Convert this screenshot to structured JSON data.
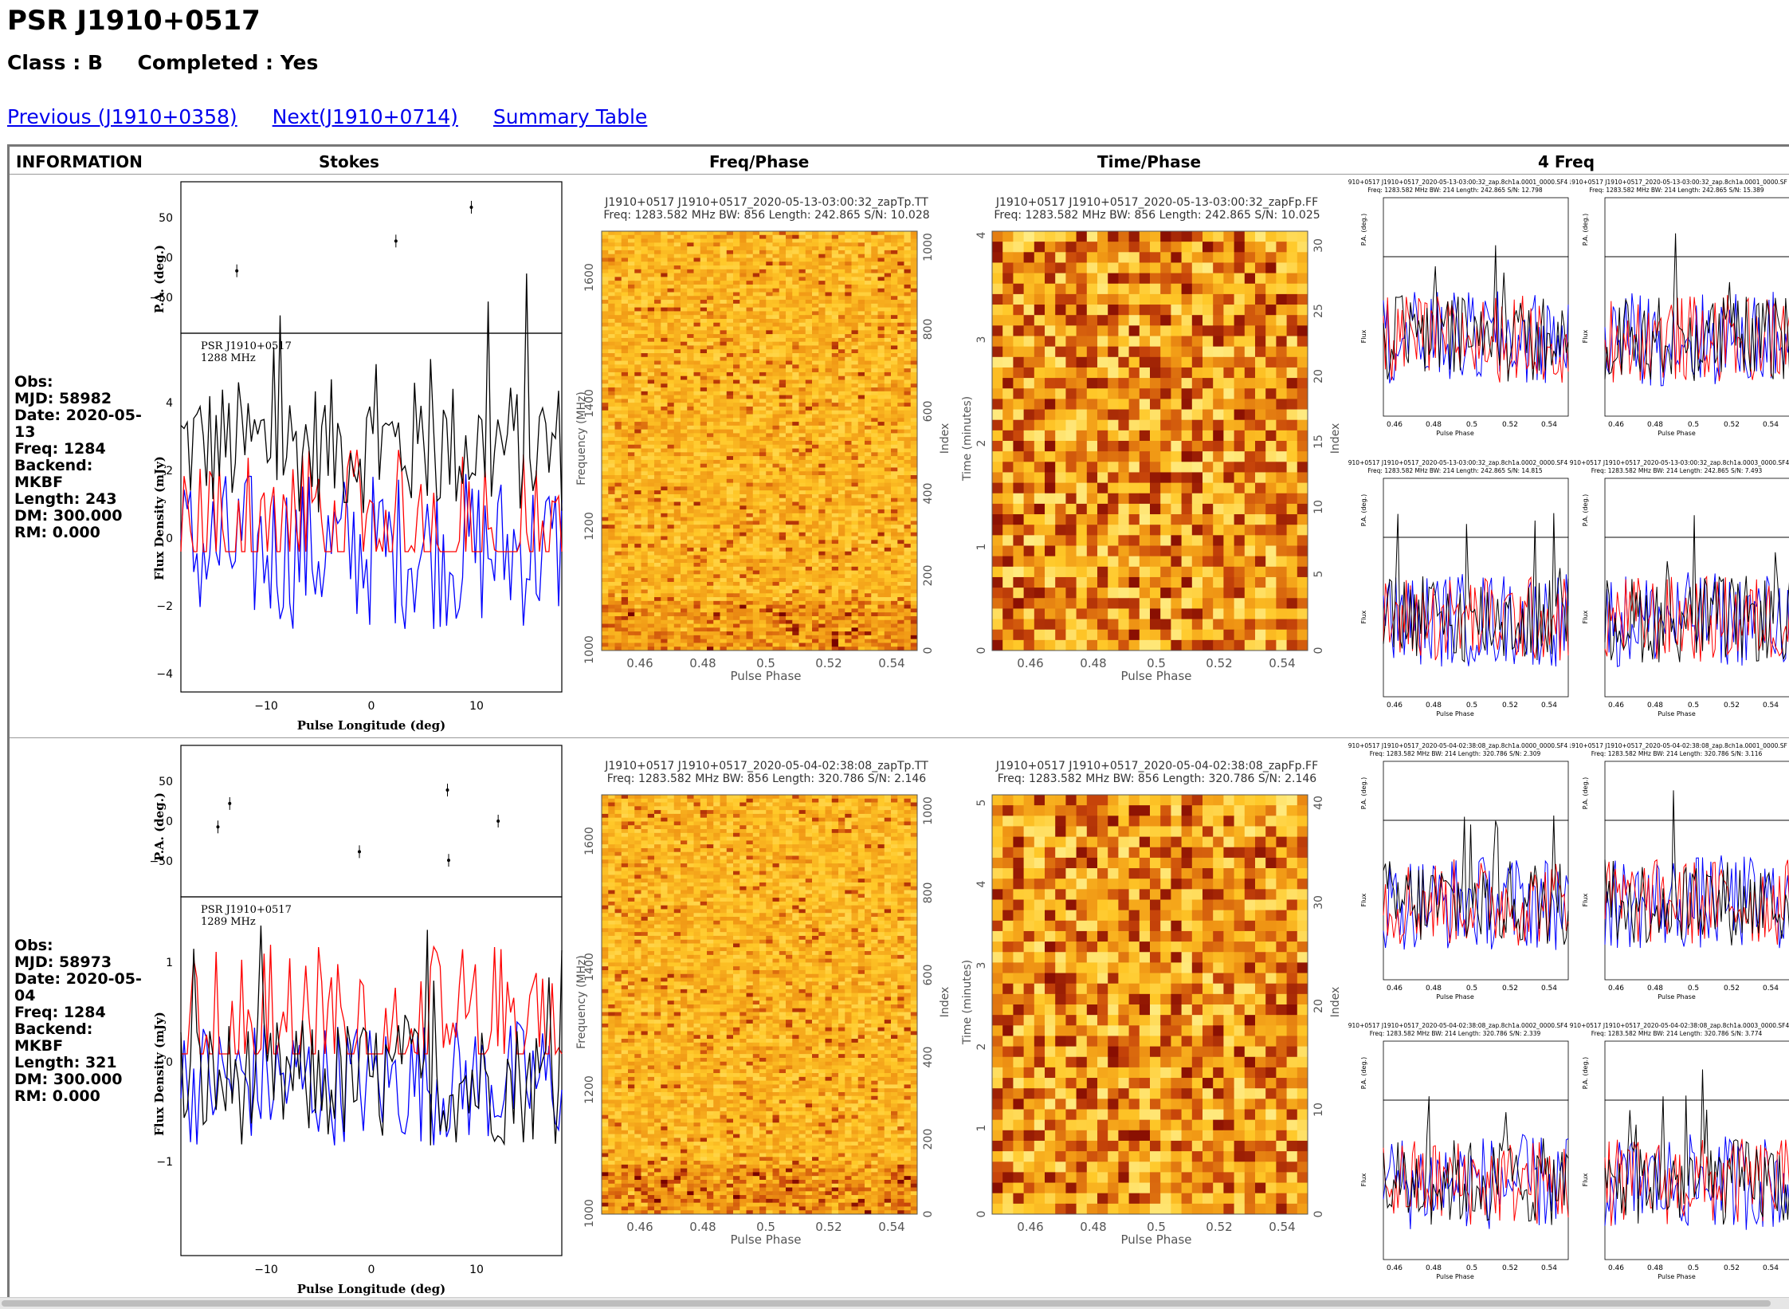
{
  "page": {
    "title": "PSR J1910+0517",
    "class_label": "Class : B",
    "completed_label": "Completed : Yes",
    "links": {
      "previous": "Previous (J1910+0358)",
      "next": "Next(J1910+0714)",
      "summary": "Summary Table"
    }
  },
  "table": {
    "headers": [
      "INFORMATION",
      "Stokes",
      "Freq/Phase",
      "Time/Phase",
      "4 Freq"
    ],
    "rows": [
      {
        "info": {
          "obs": "Obs:",
          "mjd": "MJD: 58982",
          "date": "Date: 2020-05-13",
          "freq": "Freq: 1284",
          "backend": "Backend: MKBF",
          "length": "Length: 243",
          "dm": "DM: 300.000",
          "rm": "RM: 0.000"
        },
        "stokes": {
          "psr": "PSR J1910+0517",
          "mhz": "1288 MHz",
          "pa_label": "P.A. (deg.)",
          "flux_label": "Flux Density (mJy)",
          "x_label": "Pulse Longitude (deg)",
          "pa_ticks": [
            "50",
            "0",
            "−50"
          ],
          "flux_ticks": [
            "4",
            "2",
            "0",
            "−2",
            "−4"
          ],
          "x_ticks": [
            "−10",
            "0",
            "10"
          ]
        },
        "freqphase": {
          "title": "J1910+0517  J1910+0517_2020-05-13-03:00:32_zapTp.TT",
          "subtitle": "Freq: 1283.582 MHz  BW: 856  Length: 242.865  S/N: 10.028",
          "ylabel": "Frequency (MHz)",
          "rlabel": "Index",
          "xlabel": "Pulse Phase",
          "yticks": [
            "1600",
            "1400",
            "1200",
            "1000"
          ],
          "rticks": [
            "1000",
            "800",
            "600",
            "400",
            "200",
            "0"
          ],
          "xticks": [
            "0.46",
            "0.48",
            "0.5",
            "0.52",
            "0.54"
          ]
        },
        "timephase": {
          "title": "J1910+0517  J1910+0517_2020-05-13-03:00:32_zapFp.FF",
          "subtitle": "Freq: 1283.582 MHz  BW: 856  Length: 242.865  S/N: 10.025",
          "ylabel": "Time (minutes)",
          "rlabel": "Index",
          "xlabel": "Pulse Phase",
          "yticks": [
            "4",
            "3",
            "2",
            "1",
            "0"
          ],
          "rticks": [
            "30",
            "25",
            "20",
            "15",
            "10",
            "5",
            "0"
          ],
          "xticks": [
            "0.46",
            "0.48",
            "0.5",
            "0.52",
            "0.54"
          ]
        },
        "fourfreq": [
          {
            "title": "J1910+0517  J1910+0517_2020-05-13-03:00:32_zap.8ch1a.0001_0000.SF4",
            "sub": "Freq: 1283.582  MHz  BW: 214  Length: 242.865  S/N: 12.798"
          },
          {
            "title": "J1910+0517  J1910+0517_2020-05-13-03:00:32_zap.8ch1a.0001_0000.SF",
            "sub": "Freq: 1283.582  MHz  BW: 214  Length: 242.865  S/N: 15.389"
          },
          {
            "title": "J1910+0517  J1910+0517_2020-05-13-03:00:32_zap.8ch1a.0002_0000.SF4",
            "sub": "Freq: 1283.582  MHz  BW: 214  Length: 242.865  S/N: 14.815"
          },
          {
            "title": "J1910+0517  J1910+0517_2020-05-13-03:00:32_zap.8ch1a.0003_0000.SF4",
            "sub": "Freq: 1283.582  MHz  BW: 214  Length: 242.865  S/N: 7.493"
          }
        ]
      },
      {
        "info": {
          "obs": "Obs:",
          "mjd": "MJD: 58973",
          "date": "Date: 2020-05-04",
          "freq": "Freq: 1284",
          "backend": "Backend: MKBF",
          "length": "Length: 321",
          "dm": "DM: 300.000",
          "rm": "RM: 0.000"
        },
        "stokes": {
          "psr": "PSR J1910+0517",
          "mhz": "1289 MHz",
          "pa_label": "P.A. (deg.)",
          "flux_label": "Flux Density (mJy)",
          "x_label": "Pulse Longitude (deg)",
          "pa_ticks": [
            "50",
            "0",
            "−50"
          ],
          "flux_ticks": [
            "1",
            "0",
            "−1"
          ],
          "x_ticks": [
            "−10",
            "0",
            "10"
          ]
        },
        "freqphase": {
          "title": "J1910+0517  J1910+0517_2020-05-04-02:38:08_zapTp.TT",
          "subtitle": "Freq: 1283.582 MHz  BW: 856  Length: 320.786  S/N: 2.146",
          "ylabel": "Frequency (MHz)",
          "rlabel": "Index",
          "xlabel": "Pulse Phase",
          "yticks": [
            "1600",
            "1400",
            "1200",
            "1000"
          ],
          "rticks": [
            "1000",
            "800",
            "600",
            "400",
            "200",
            "0"
          ],
          "xticks": [
            "0.46",
            "0.48",
            "0.5",
            "0.52",
            "0.54"
          ]
        },
        "timephase": {
          "title": "J1910+0517  J1910+0517_2020-05-04-02:38:08_zapFp.FF",
          "subtitle": "Freq: 1283.582 MHz  BW: 856  Length: 320.786  S/N: 2.146",
          "ylabel": "Time (minutes)",
          "rlabel": "Index",
          "xlabel": "Pulse Phase",
          "yticks": [
            "5",
            "4",
            "3",
            "2",
            "1",
            "0"
          ],
          "rticks": [
            "40",
            "30",
            "20",
            "10",
            "0"
          ],
          "xticks": [
            "0.46",
            "0.48",
            "0.5",
            "0.52",
            "0.54"
          ]
        },
        "fourfreq": [
          {
            "title": "J1910+0517  J1910+0517_2020-05-04-02:38:08_zap.8ch1a.0000_0000.SF4",
            "sub": "Freq: 1283.582  MHz  BW: 214  Length: 320.786  S/N: 2.309"
          },
          {
            "title": "J1910+0517  J1910+0517_2020-05-04-02:38:08_zap.8ch1a.0001_0000.SF",
            "sub": "Freq: 1283.582  MHz  BW: 214  Length: 320.786  S/N: 3.116"
          },
          {
            "title": "J1910+0517  J1910+0517_2020-05-04-02:38:08_zap.8ch1a.0002_0000.SF4",
            "sub": "Freq: 1283.582  MHz  BW: 214  Length: 320.786  S/N: 2.339"
          },
          {
            "title": "J1910+0517  J1910+0517_2020-05-04-02:38:08_zap.8ch1a.0003_0000.SF4",
            "sub": "Freq: 1283.582  MHz  BW: 214  Length: 320.786  S/N: 3.774"
          }
        ]
      }
    ]
  },
  "colors": {
    "link": "#0000ee",
    "stokes_i": "#000000",
    "stokes_l": "#ff0000",
    "stokes_v": "#0000ff",
    "heatmap_low": "#ffd040",
    "heatmap_high": "#7a0000"
  },
  "fourfreq_axis": {
    "pa_label": "P.A. (deg.)",
    "flux_label": "Flux",
    "x_label": "Pulse Phase",
    "xticks": [
      "0.46",
      "0.48",
      "0.5",
      "0.52",
      "0.54"
    ]
  }
}
